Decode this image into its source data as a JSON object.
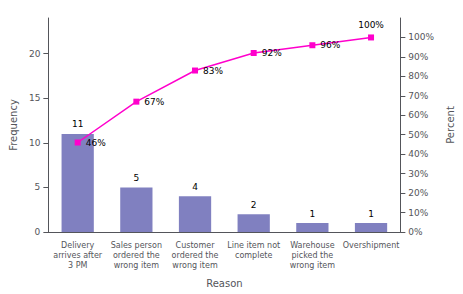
{
  "chart_data": {
    "type": "bar",
    "categories": [
      "Delivery\narrives after\n3 PM",
      "Sales person\nordered the\nwrong item",
      "Customer\nordered the\nwrong item",
      "Line item not\ncomplete",
      "Warehouse\npicked the\nwrong item",
      "Overshipment"
    ],
    "series": [
      {
        "name": "Frequency",
        "type": "bar",
        "color": "#8080c0",
        "values": [
          11,
          5,
          4,
          2,
          1,
          1
        ]
      },
      {
        "name": "Percent",
        "type": "line",
        "axis": "y2",
        "color": "#ff00cc",
        "marker": "square",
        "values": [
          46,
          67,
          83,
          92,
          96,
          100
        ],
        "value_labels": [
          "46%",
          "67%",
          "83%",
          "92%",
          "96%",
          "100%"
        ]
      }
    ],
    "xlabel": "Reason",
    "ylabel": "Frequency",
    "y2label": "Percent",
    "ylim": [
      0,
      24
    ],
    "yticks": [
      0,
      5,
      10,
      15,
      20
    ],
    "y2lim": [
      0,
      110
    ],
    "y2ticks": [
      {
        "value": 0,
        "label": "0%"
      },
      {
        "value": 10,
        "label": "10%"
      },
      {
        "value": 20,
        "label": "20%"
      },
      {
        "value": 30,
        "label": "30%"
      },
      {
        "value": 40,
        "label": "40%"
      },
      {
        "value": 50,
        "label": "50%"
      },
      {
        "value": 60,
        "label": "60%"
      },
      {
        "value": 70,
        "label": "70%"
      },
      {
        "value": 80,
        "label": "80%"
      },
      {
        "value": 90,
        "label": "90%"
      },
      {
        "value": 100,
        "label": "100%"
      }
    ],
    "data_labels": true,
    "grid": false
  }
}
